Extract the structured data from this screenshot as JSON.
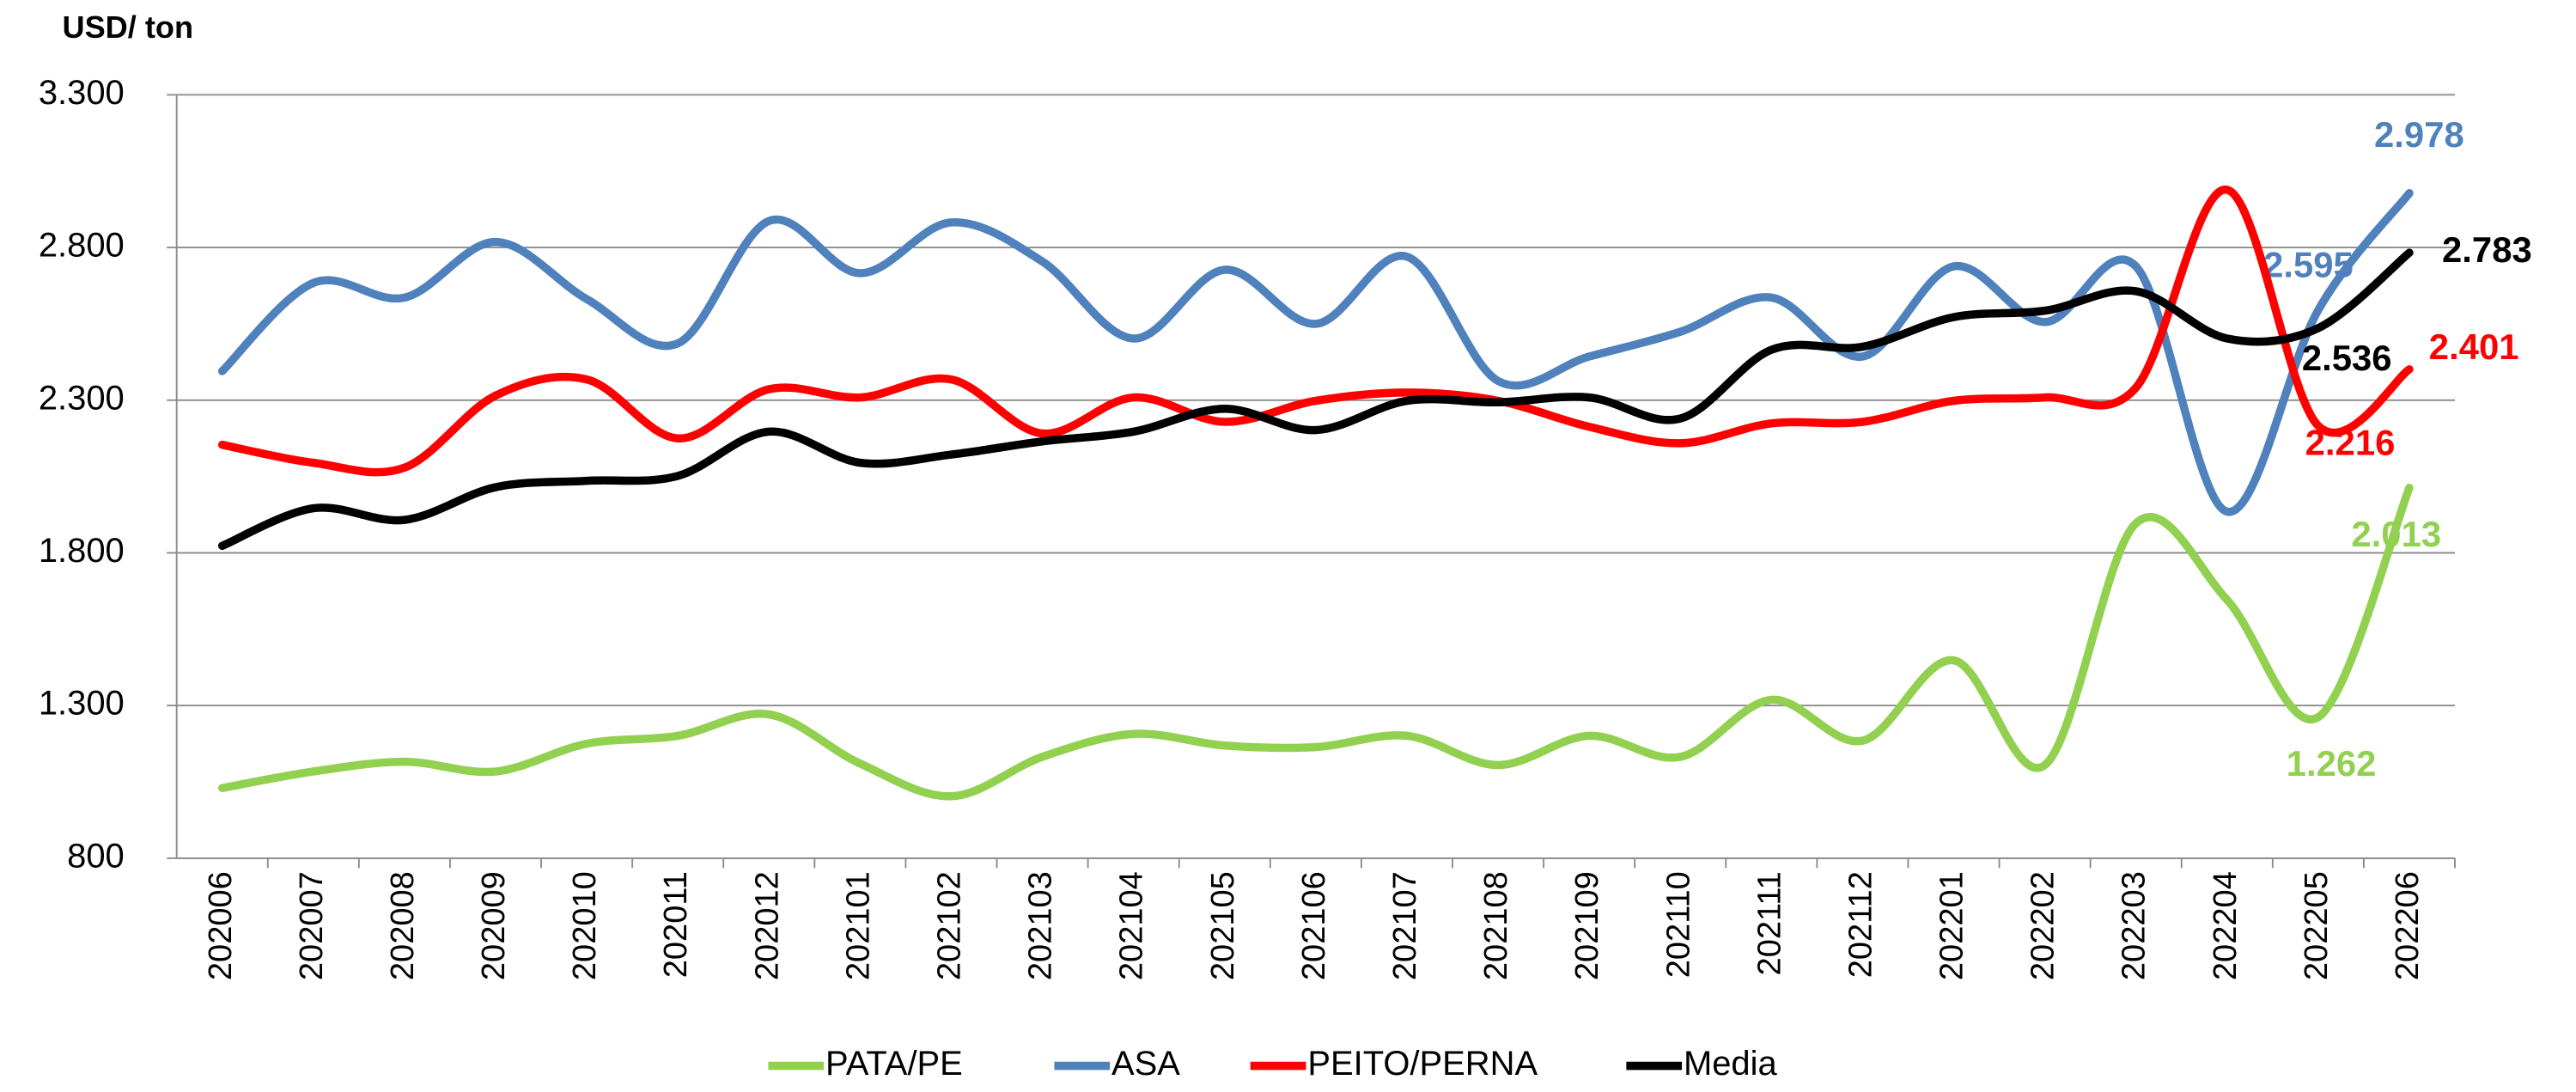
{
  "chart_data": {
    "type": "line",
    "y_axis_title": "USD/ ton",
    "categories": [
      "202006",
      "202007",
      "202008",
      "202009",
      "202010",
      "202011",
      "202012",
      "202101",
      "202102",
      "202103",
      "202104",
      "202105",
      "202106",
      "202107",
      "202108",
      "202109",
      "202110",
      "202111",
      "202112",
      "202201",
      "202202",
      "202203",
      "202204",
      "202205",
      "202206"
    ],
    "ylim": [
      800,
      3300
    ],
    "yticks": [
      800,
      {
        "value": 1300,
        "label": "1.300"
      },
      {
        "value": 1800,
        "label": "1.800"
      },
      {
        "value": 2300,
        "label": "2.300"
      },
      {
        "value": 2800,
        "label": "2.800"
      },
      {
        "value": 3300,
        "label": "3.300"
      }
    ],
    "grid": true,
    "legend": "bottom",
    "series": [
      {
        "name": "PATA/PE",
        "color": "#92d050",
        "values": [
          1030,
          1084,
          1116,
          1084,
          1175,
          1201,
          1271,
          1110,
          1003,
          1132,
          1207,
          1169,
          1164,
          1201,
          1105,
          1201,
          1132,
          1319,
          1185,
          1448,
          1105,
          1897,
          1646,
          1262,
          2013
        ],
        "value_labels": [
          null,
          null,
          null,
          null,
          null,
          null,
          null,
          null,
          null,
          null,
          null,
          null,
          null,
          null,
          null,
          null,
          null,
          null,
          null,
          null,
          null,
          null,
          null,
          "1.262",
          "2.013"
        ]
      },
      {
        "name": "ASA",
        "color": "#4f81bd",
        "values": [
          2395,
          2684,
          2636,
          2818,
          2631,
          2486,
          2887,
          2716,
          2882,
          2754,
          2502,
          2727,
          2550,
          2770,
          2363,
          2443,
          2524,
          2636,
          2443,
          2738,
          2556,
          2738,
          1935,
          2595,
          2978
        ],
        "value_labels": [
          null,
          null,
          null,
          null,
          null,
          null,
          null,
          null,
          null,
          null,
          null,
          null,
          null,
          null,
          null,
          null,
          null,
          null,
          null,
          null,
          null,
          null,
          null,
          "2.595",
          "2.978"
        ]
      },
      {
        "name": "PEITO/PERNA",
        "color": "#ff0000",
        "values": [
          2154,
          2095,
          2079,
          2315,
          2368,
          2175,
          2336,
          2309,
          2368,
          2191,
          2309,
          2229,
          2298,
          2325,
          2298,
          2213,
          2159,
          2224,
          2229,
          2298,
          2309,
          2341,
          2989,
          2216,
          2401
        ],
        "value_labels": [
          null,
          null,
          null,
          null,
          null,
          null,
          null,
          null,
          null,
          null,
          null,
          null,
          null,
          null,
          null,
          null,
          null,
          null,
          null,
          null,
          null,
          null,
          null,
          "2.216",
          "2.401"
        ]
      },
      {
        "name": "Media",
        "color": "#000000",
        "values": [
          1823,
          1946,
          1908,
          2015,
          2036,
          2052,
          2197,
          2095,
          2122,
          2165,
          2197,
          2272,
          2202,
          2298,
          2293,
          2309,
          2240,
          2465,
          2475,
          2572,
          2593,
          2657,
          2502,
          2536,
          2783
        ],
        "value_labels": [
          null,
          null,
          null,
          null,
          null,
          null,
          null,
          null,
          null,
          null,
          null,
          null,
          null,
          null,
          null,
          null,
          null,
          null,
          null,
          null,
          null,
          null,
          null,
          "2.536",
          "2.783"
        ]
      }
    ]
  }
}
